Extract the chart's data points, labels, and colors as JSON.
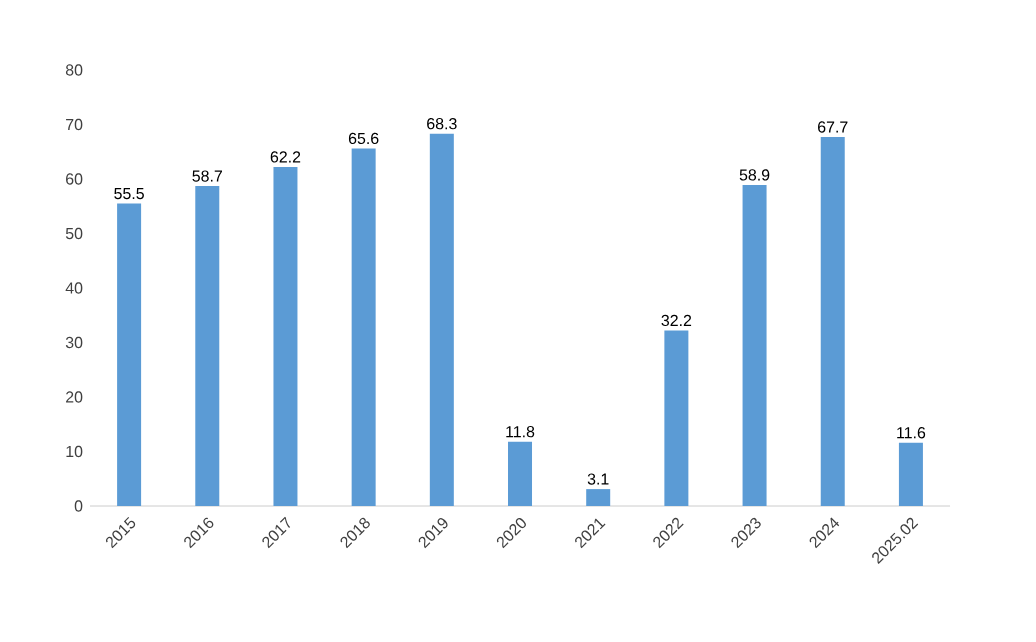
{
  "chart_data": {
    "type": "bar",
    "categories": [
      "2015",
      "2016",
      "2017",
      "2018",
      "2019",
      "2020",
      "2021",
      "2022",
      "2023",
      "2024",
      "2025.02"
    ],
    "values": [
      55.5,
      58.7,
      62.2,
      65.6,
      68.3,
      11.8,
      3.1,
      32.2,
      58.9,
      67.7,
      11.6
    ],
    "color": "#5b9bd5",
    "ylim": [
      0,
      80
    ],
    "yticks": [
      0,
      10,
      20,
      30,
      40,
      50,
      60,
      70,
      80
    ],
    "grid": false,
    "data_labels": true
  }
}
